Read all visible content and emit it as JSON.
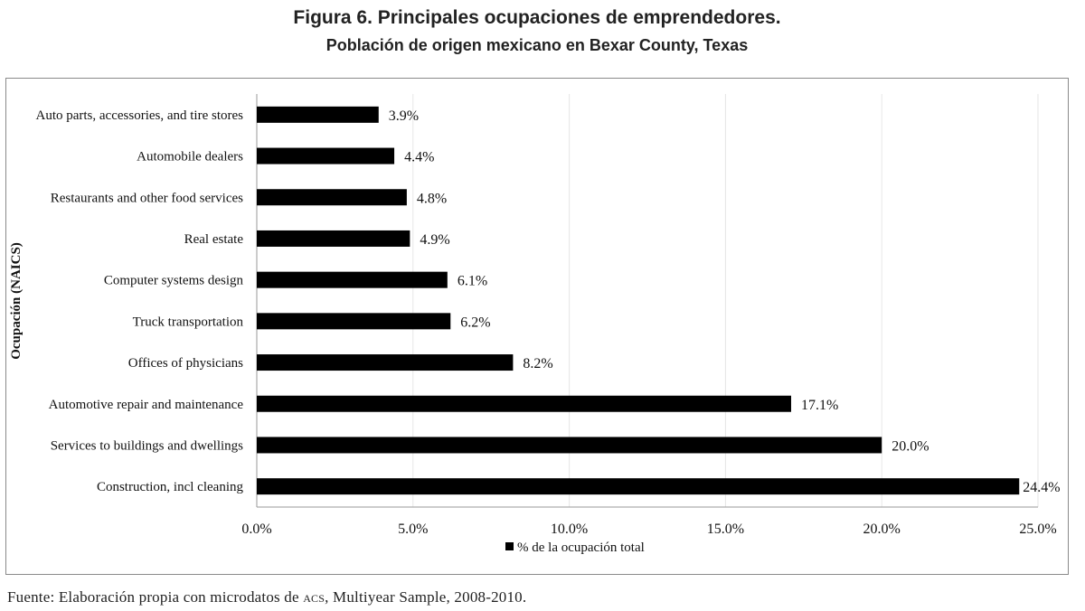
{
  "title": "Figura 6. Principales ocupaciones de emprendedores.",
  "subtitle": "Población de origen mexicano en Bexar County, Texas",
  "source": {
    "prefix": "Fuente: Elaboración propia con microdatos de ",
    "acronym": "ACS",
    "suffix": ", Multiyear Sample, 2008-2010."
  },
  "chart_data": {
    "type": "bar",
    "orientation": "horizontal",
    "ylabel": "Ocupación (NAICS)",
    "xlabel": "",
    "xlim": [
      0,
      25
    ],
    "xticks": [
      "0.0%",
      "5.0%",
      "10.0%",
      "15.0%",
      "20.0%",
      "25.0%"
    ],
    "grid": true,
    "legend": "bottom",
    "categories": [
      "Auto parts, accessories, and tire stores",
      "Automobile dealers",
      "Restaurants and other food services",
      "Real estate",
      "Computer systems design",
      "Truck transportation",
      "Offices of physicians",
      "Automotive repair and maintenance",
      "Services to buildings and dwellings",
      "Construction, incl cleaning"
    ],
    "series": [
      {
        "name": "% de la ocupación total",
        "color": "#000000",
        "values": [
          3.9,
          4.4,
          4.8,
          4.9,
          6.1,
          6.2,
          8.2,
          17.1,
          20.0,
          24.4
        ],
        "labels": [
          "3.9%",
          "4.4%",
          "4.8%",
          "4.9%",
          "6.1%",
          "6.2%",
          "8.2%",
          "17.1%",
          "20.0%",
          "24.4%"
        ]
      }
    ]
  }
}
